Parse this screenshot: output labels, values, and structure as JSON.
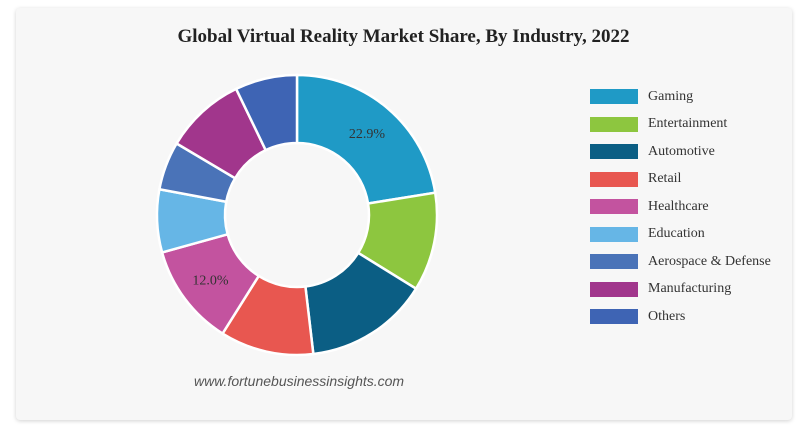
{
  "chart_data": {
    "type": "pie",
    "title": "Global Virtual Reality Market Share, By Industry, 2022",
    "categories": [
      "Gaming",
      "Entertainment",
      "Automotive",
      "Retail",
      "Healthcare",
      "Education",
      "Aerospace & Defense",
      "Manufacturing",
      "Others"
    ],
    "values": [
      22.9,
      11.6,
      14.6,
      11.0,
      12.0,
      7.4,
      5.7,
      9.5,
      7.3
    ],
    "colors": [
      "#1f9ac6",
      "#8dc63f",
      "#0b5e84",
      "#e85750",
      "#c3539f",
      "#66b6e6",
      "#4a73b8",
      "#a1368c",
      "#3e64b4"
    ],
    "data_labels": [
      {
        "index": 0,
        "text": "22.9%"
      },
      {
        "index": 4,
        "text": "12.0%"
      }
    ],
    "donut": true,
    "legend_position": "right"
  },
  "source": "www.fortunebusinessinsights.com"
}
